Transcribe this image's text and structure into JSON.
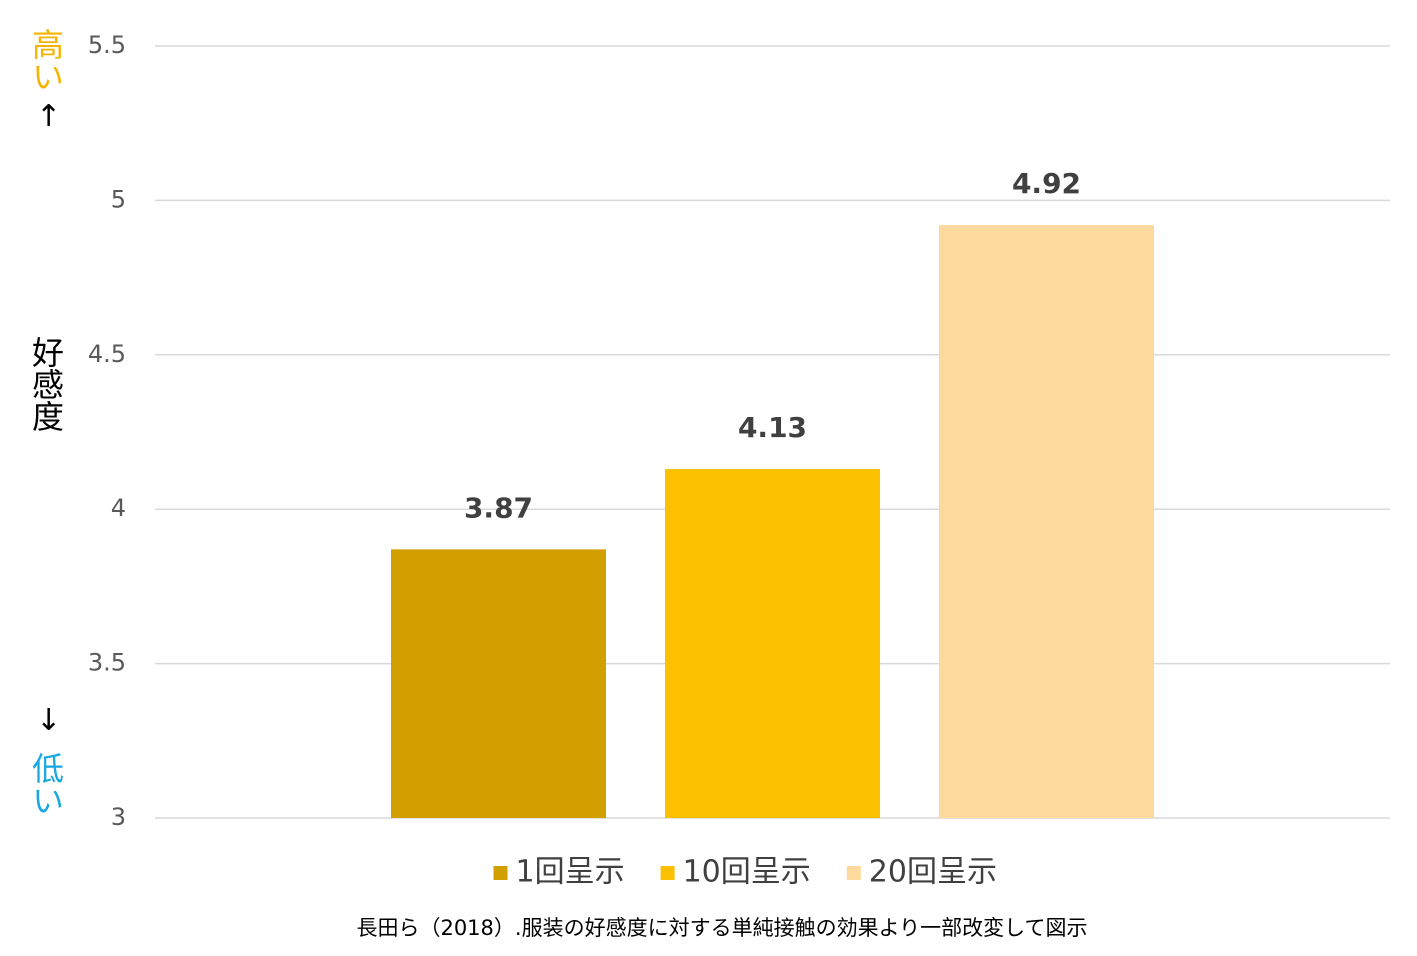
{
  "chart_data": {
    "type": "bar",
    "categories": [
      null
    ],
    "series": [
      {
        "name": "1回呈示",
        "color": "#d29f00",
        "values": [
          3.87
        ]
      },
      {
        "name": "10回呈示",
        "color": "#fcc000",
        "values": [
          4.13
        ]
      },
      {
        "name": "20回呈示",
        "color": "#fed99e",
        "values": [
          4.92
        ]
      }
    ],
    "ylim": [
      3,
      5.5
    ],
    "yticks": [
      3,
      3.5,
      4,
      4.5,
      5,
      5.5
    ],
    "grid": true,
    "legend": "bottom",
    "y_label": "好感度",
    "annotations": {
      "high": "高い",
      "up_arrow": "↑",
      "down_arrow": "↓",
      "low": "低い"
    },
    "source": "長田ら（2018）.服装の好感度に対する単純接触の効果より一部改変して図示"
  }
}
